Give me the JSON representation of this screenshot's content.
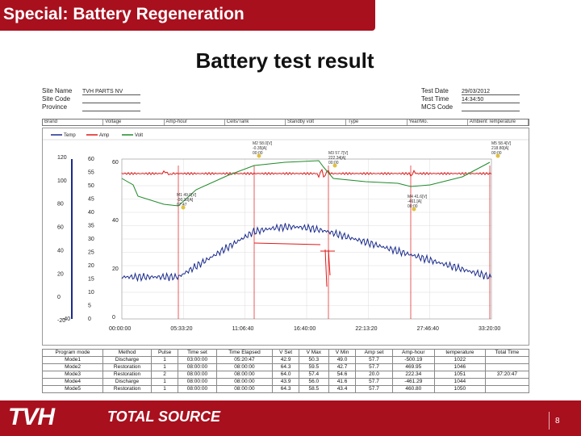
{
  "slide": {
    "title": "Special: Battery Regeneration",
    "headline": "Battery test result",
    "page_number": "8"
  },
  "meta_left": [
    {
      "label": "Site Name",
      "value": "TVH PARTS NV"
    },
    {
      "label": "Site Code",
      "value": ""
    },
    {
      "label": "Province",
      "value": ""
    }
  ],
  "meta_right": [
    {
      "label": "Test Date",
      "value": "29/03/2012"
    },
    {
      "label": "Test Time",
      "value": "14:34:50"
    },
    {
      "label": "MCS Code",
      "value": ""
    }
  ],
  "param_headers": [
    "Brand",
    "Voltage",
    "Amp-hour",
    "Cells/Tank",
    "Standby volt",
    "Type",
    "Year/Mo.",
    "Ambient Temperature"
  ],
  "chart_data": {
    "type": "line",
    "legend": [
      "Temp",
      "Amp",
      "Volt"
    ],
    "x_ticks": [
      "00:00:00",
      "05:33:20",
      "11:06:40",
      "16:40:00",
      "22:13:20",
      "27:46:40",
      "33:20:00"
    ],
    "axis_temp_ticks": [
      "120",
      "100",
      "80",
      "60",
      "40",
      "20",
      "0",
      "-20"
    ],
    "axis_volt_ticks": [
      "60",
      "55",
      "50",
      "45",
      "40",
      "35",
      "30",
      "25",
      "20",
      "15",
      "10",
      "5",
      "0"
    ],
    "axis_amp_ticks": [
      "60",
      "40",
      "20",
      "0"
    ],
    "axis_amp_neg_tick": "-40",
    "annotations": [
      "M2 58.0[V] -0.35[A] 00:00",
      "M3 57.7[V] 222.34[A] 00:00",
      "M5 58.4[V] 218.80[A] 00:00",
      "M1 49.0[V] -00.10[A] 07:47",
      "M4 41.6[V] -461.[A] 00:00"
    ]
  },
  "program_table": {
    "headers": [
      "Program mode",
      "Method",
      "Pulse",
      "Time set",
      "Time Elapsed",
      "V Set",
      "V Max",
      "V Min",
      "Amp set",
      "Amp-hour",
      "temperature",
      "Total Time"
    ],
    "rows": [
      [
        "Mode1",
        "Discharge",
        "1",
        "03:00:00",
        "05:20:47",
        "42.9",
        "50.3",
        "49.0",
        "57.7",
        "-500.19",
        "1022",
        ""
      ],
      [
        "Mode2",
        "Restoration",
        "1",
        "08:00:00",
        "08:00:00",
        "64.3",
        "59.5",
        "42.7",
        "57.7",
        "469.95",
        "1046",
        ""
      ],
      [
        "Mode3",
        "Restoration",
        "2",
        "08:00:00",
        "08:00:00",
        "64.0",
        "57.4",
        "54.6",
        "20.0",
        "222.34",
        "1051",
        "37:20:47"
      ],
      [
        "Mode4",
        "Discharge",
        "1",
        "08:00:00",
        "08:00:00",
        "43.9",
        "56.0",
        "41.6",
        "57.7",
        "-461.29",
        "1044",
        ""
      ],
      [
        "Mode5",
        "Restoration",
        "1",
        "08:00:00",
        "08:00:00",
        "64.3",
        "58.5",
        "43.4",
        "57.7",
        "460.80",
        "1050",
        ""
      ]
    ]
  },
  "brand": {
    "logo_text": "TVH",
    "partner_text": "TOTAL SOURCE"
  },
  "colors": {
    "brand_red": "#a8101e",
    "temp_line": "#1a2b8c",
    "amp_line": "#e01818",
    "volt_line": "#1f8a2a"
  }
}
